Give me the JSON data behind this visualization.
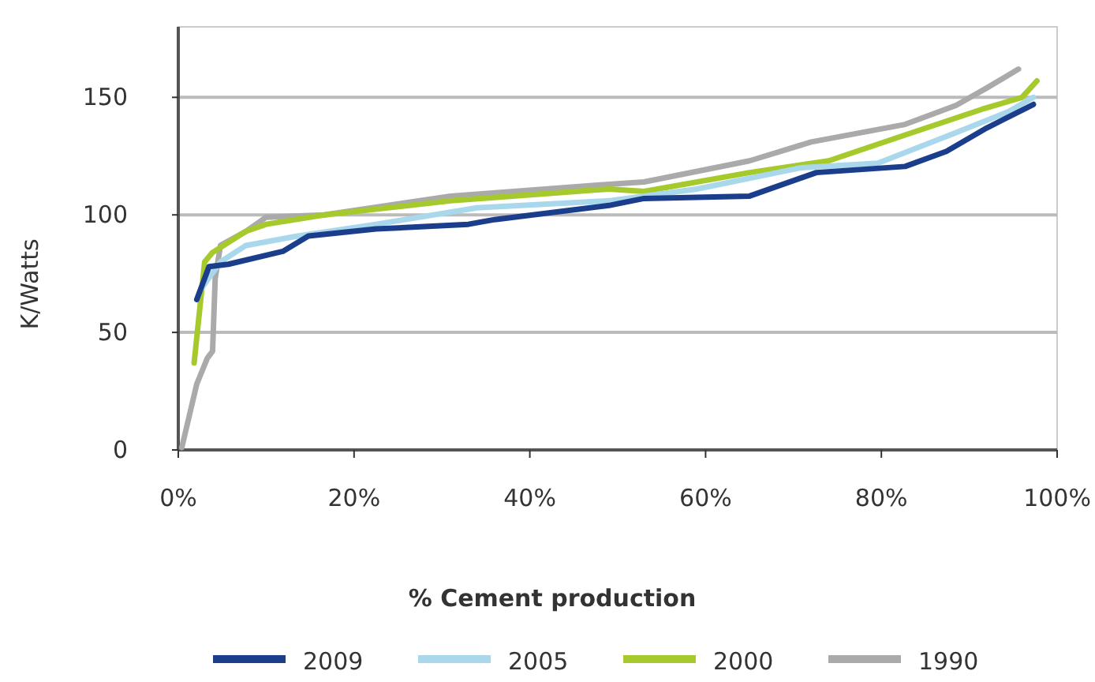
{
  "chart_data": {
    "type": "line",
    "xlabel": "% Cement production",
    "ylabel": "K/Watts",
    "xlim": [
      0,
      100
    ],
    "xticks": [
      {
        "value": 0,
        "label": "0%"
      },
      {
        "value": 20,
        "label": "20%"
      },
      {
        "value": 40,
        "label": "40%"
      },
      {
        "value": 60,
        "label": "60%"
      },
      {
        "value": 80,
        "label": "80%"
      },
      {
        "value": 100,
        "label": "100%"
      }
    ],
    "ylim": [
      0,
      180
    ],
    "yticks": [
      0,
      50,
      100,
      150
    ],
    "grid": "y",
    "legend": "bottom",
    "marker": "none",
    "line_style": "solid",
    "series": [
      {
        "name": "2009",
        "color": "#1a3e8c",
        "x": [
          2.1,
          3.5,
          5.7,
          11.9,
          14.8,
          22.5,
          33,
          36,
          49,
          53,
          65,
          72.6,
          82.7,
          87.4,
          92,
          97.3
        ],
        "values": [
          64,
          78,
          79,
          84.5,
          91,
          94,
          96,
          98,
          104,
          107,
          108,
          118,
          120.6,
          127,
          137,
          147
        ]
      },
      {
        "name": "2005",
        "color": "#a9d8ec",
        "x": [
          2.7,
          4.8,
          7.7,
          13.6,
          22.5,
          34,
          49,
          59,
          70.8,
          79.6,
          88.5,
          94.5,
          97.3
        ],
        "values": [
          69,
          80,
          87,
          91,
          96,
          103,
          106,
          111,
          120,
          122,
          135,
          144,
          150
        ]
      },
      {
        "name": "2000",
        "color": "#a6c92b",
        "x": [
          1.8,
          3,
          3.9,
          7.7,
          10,
          16.6,
          31,
          49,
          53,
          65,
          74,
          82.7,
          91.5,
          96,
          97.7
        ],
        "values": [
          37,
          80,
          84,
          93,
          96,
          100,
          106,
          111,
          110,
          118,
          123,
          134,
          145,
          150,
          157
        ]
      },
      {
        "name": "1990",
        "color": "#aaaaaa",
        "x": [
          0.4,
          2.1,
          3.3,
          3.9,
          4.2,
          4.8,
          7.7,
          10,
          16.6,
          31,
          49,
          53,
          65,
          72,
          82.7,
          88.5,
          92,
          95.6
        ],
        "values": [
          1,
          28,
          39,
          42,
          73,
          87,
          93,
          99,
          100,
          108,
          113,
          114,
          123,
          131,
          138.5,
          146.6,
          154,
          162
        ]
      }
    ]
  }
}
